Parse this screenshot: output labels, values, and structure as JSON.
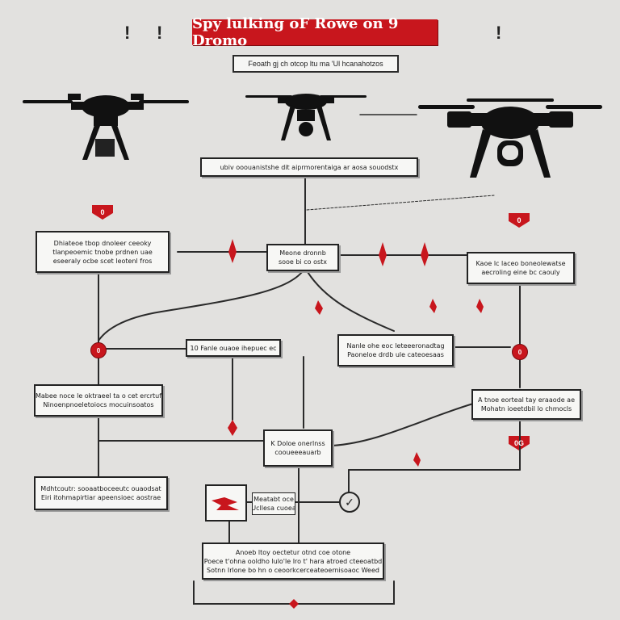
{
  "title": "Spy lulking oF Rowe on 9 Dromo",
  "subtitle": "Feoath gj ch otcop ltu ma 'Ul hcanahotzos",
  "top_marks": [
    "!",
    "!",
    "!"
  ],
  "nodes": {
    "header": [
      "ubiv ooouanistshe dit aiprmorentaiga ar aosa souodstx"
    ],
    "center": [
      "Meone dronnb",
      "sooe bi co ostx"
    ],
    "left_top": [
      "Dhiateoe tbop dnoleer ceeoky",
      "tlanpeoemic tnobe prdnen uae",
      "eseeraly ocbe scet leotenl fros"
    ],
    "right_top": [
      "Kaoe lc laceo boneolewatse",
      "aecroling eine bc caouly"
    ],
    "middle_left": [
      "10 Fanle ouaoe ihepuec ec"
    ],
    "middle_right": [
      "Nanle ohe eoc leteeeronadtag",
      "Paoneloe drdb ule cateoesaas"
    ],
    "left_mid": [
      "Mabee noce le oktraeel ta o cet ercrtuf",
      "Ninoenpnoeletoiocs mocuinsoatos"
    ],
    "right_mid": [
      "A tnoe eorteal tay eraaode ae",
      "Mohatn ioeetdbil lo chmocls"
    ],
    "lower_center": [
      "K Doloe onerlnss",
      "cooueeeauarb"
    ],
    "left_low": [
      "Mdhtcoutr: sooaatboceeutc ouaodsat",
      "Eiri itohmapirtiar apeensioec aostrae"
    ],
    "flag_label": [
      "Meatabt oce",
      "Ucllesa cuoea"
    ],
    "bottom": [
      "Anoeb ltoy oectetur otnd coe otone",
      "Poece t'ohna ooldho lulo'le Iro t' hara atroed cteeoatbd",
      "Sotnn Irlone bo hn o ceoorkcerceateoernisoaoc Weed"
    ]
  },
  "badges": {
    "left": "0",
    "right": "0"
  },
  "tags": {
    "left": "0",
    "right": "0",
    "lower_right": "0G"
  },
  "colors": {
    "accent": "#c8161d",
    "line": "#2a2a2a",
    "background": "#e2e1df",
    "box": "#f7f7f5"
  },
  "icons": [
    "drone-icon",
    "camera-gimbal-icon",
    "arrow-marker-icon",
    "flag-icon",
    "check-icon"
  ]
}
